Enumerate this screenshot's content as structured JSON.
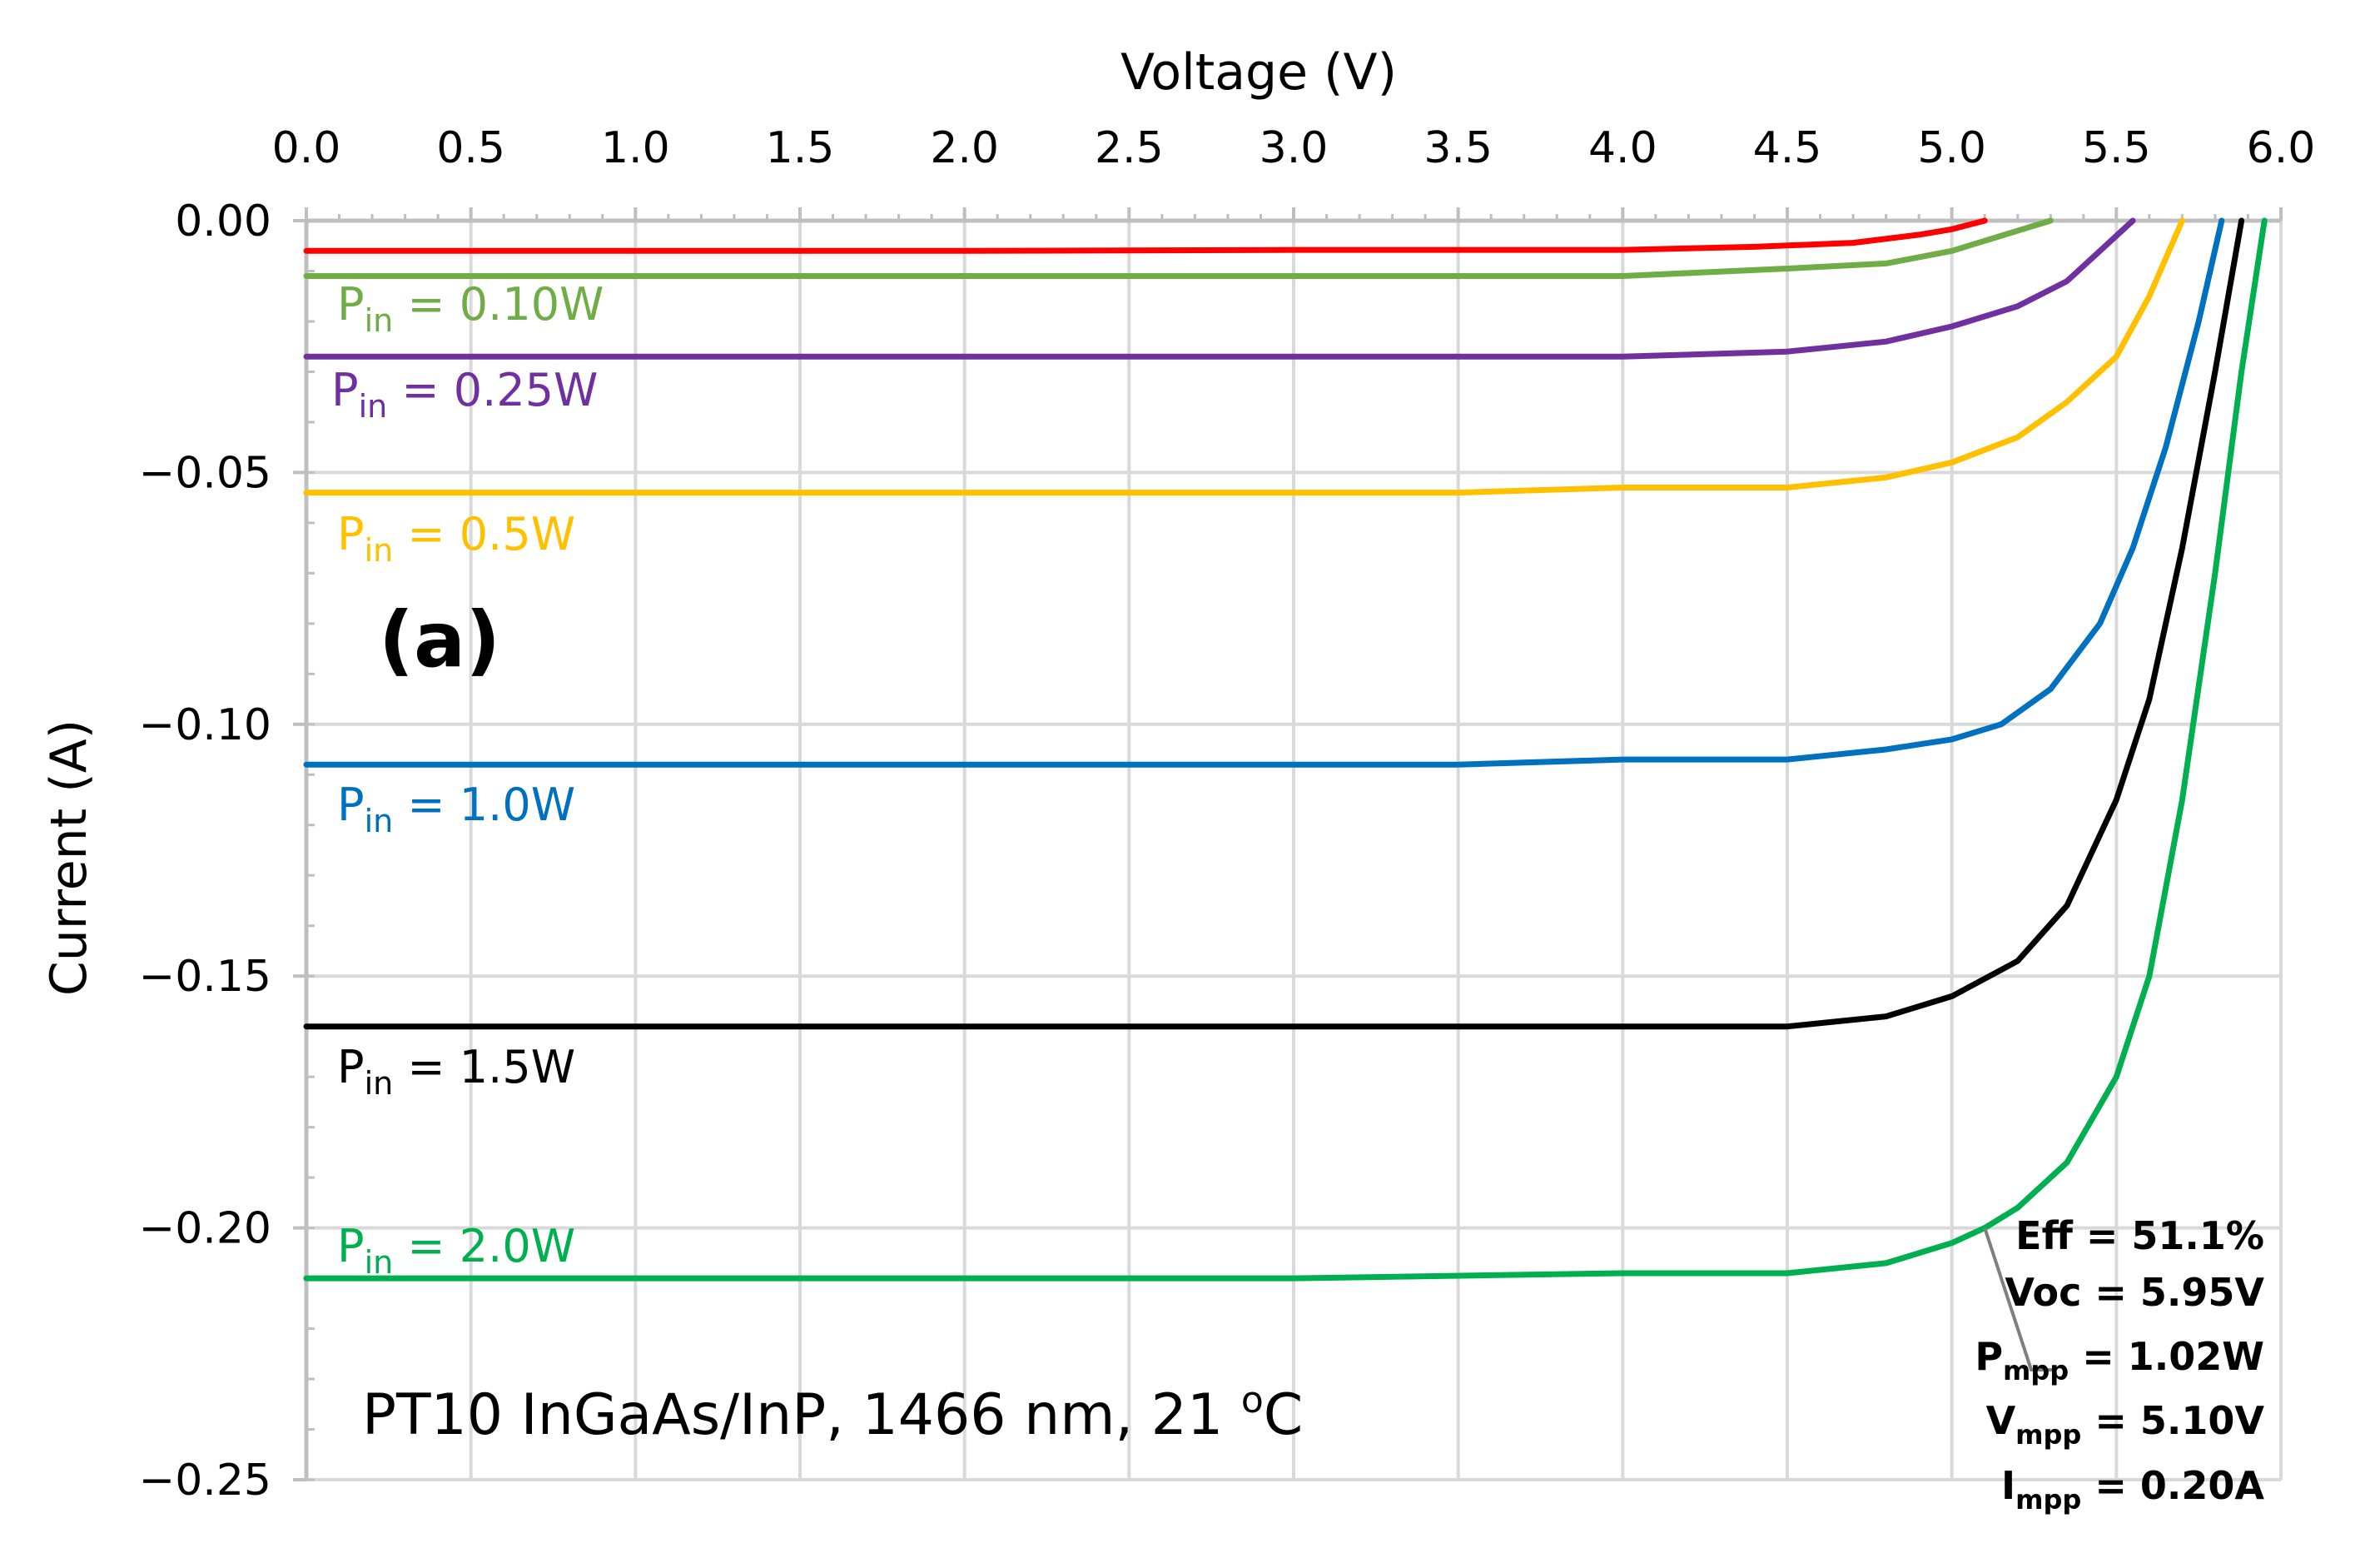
{
  "chart_data": {
    "type": "line",
    "panel_label": "(a)",
    "xlabel": "Voltage (V)",
    "ylabel": "Current (A)",
    "xlim": [
      0.0,
      6.0
    ],
    "ylim": [
      -0.25,
      0.0
    ],
    "x_ticks": [
      "0.0",
      "0.5",
      "1.0",
      "1.5",
      "2.0",
      "2.5",
      "3.0",
      "3.5",
      "4.0",
      "4.5",
      "5.0",
      "5.5",
      "6.0"
    ],
    "y_ticks": [
      {
        "value": 0.0,
        "label": "0.00"
      },
      {
        "value": -0.05,
        "label": "−0.05"
      },
      {
        "value": -0.1,
        "label": "−0.10"
      },
      {
        "value": -0.15,
        "label": "−0.15"
      },
      {
        "value": -0.2,
        "label": "−0.20"
      },
      {
        "value": -0.25,
        "label": "−0.25"
      }
    ],
    "grid": true,
    "x_axis_position": "top",
    "series": [
      {
        "name": "unlabeled",
        "color": "#ff0000",
        "label": null,
        "Isc": -0.006,
        "points": [
          [
            0,
            -0.006
          ],
          [
            1,
            -0.006
          ],
          [
            2,
            -0.006
          ],
          [
            3,
            -0.0058
          ],
          [
            4,
            -0.0058
          ],
          [
            4.4,
            -0.0052
          ],
          [
            4.7,
            -0.0044
          ],
          [
            4.9,
            -0.0028
          ],
          [
            5.0,
            -0.0017
          ],
          [
            5.1,
            0.0
          ]
        ]
      },
      {
        "name": "P_in = 0.10W",
        "color": "#70ad47",
        "label": {
          "p": "P",
          "sub": "in",
          "rest": " = 0.10W"
        },
        "Isc": -0.011,
        "points": [
          [
            0,
            -0.011
          ],
          [
            1,
            -0.011
          ],
          [
            2,
            -0.011
          ],
          [
            3,
            -0.011
          ],
          [
            4,
            -0.011
          ],
          [
            4.5,
            -0.0095
          ],
          [
            4.8,
            -0.0085
          ],
          [
            5.0,
            -0.006
          ],
          [
            5.15,
            -0.003
          ],
          [
            5.3,
            0.0
          ]
        ]
      },
      {
        "name": "P_in = 0.25W",
        "color": "#7030a0",
        "label": {
          "p": "P",
          "sub": "in",
          "rest": " = 0.25W"
        },
        "Isc": -0.027,
        "points": [
          [
            0,
            -0.027
          ],
          [
            1,
            -0.027
          ],
          [
            2,
            -0.027
          ],
          [
            3,
            -0.027
          ],
          [
            4,
            -0.027
          ],
          [
            4.5,
            -0.026
          ],
          [
            4.8,
            -0.024
          ],
          [
            5.0,
            -0.021
          ],
          [
            5.2,
            -0.017
          ],
          [
            5.35,
            -0.012
          ],
          [
            5.45,
            -0.006
          ],
          [
            5.55,
            0.0
          ]
        ]
      },
      {
        "name": "P_in = 0.5W",
        "color": "#ffc000",
        "label": {
          "p": "P",
          "sub": "in",
          "rest": " = 0.5W"
        },
        "Isc": -0.054,
        "points": [
          [
            0,
            -0.054
          ],
          [
            1,
            -0.054
          ],
          [
            2,
            -0.054
          ],
          [
            3,
            -0.054
          ],
          [
            3.5,
            -0.054
          ],
          [
            4,
            -0.053
          ],
          [
            4.5,
            -0.053
          ],
          [
            4.8,
            -0.051
          ],
          [
            5.0,
            -0.048
          ],
          [
            5.2,
            -0.043
          ],
          [
            5.35,
            -0.036
          ],
          [
            5.5,
            -0.027
          ],
          [
            5.6,
            -0.015
          ],
          [
            5.7,
            0.0
          ]
        ]
      },
      {
        "name": "P_in = 1.0W",
        "color": "#0070c0",
        "label": {
          "p": "P",
          "sub": "in",
          "rest": " = 1.0W"
        },
        "Isc": -0.108,
        "points": [
          [
            0,
            -0.108
          ],
          [
            1,
            -0.108
          ],
          [
            2,
            -0.108
          ],
          [
            3,
            -0.108
          ],
          [
            3.5,
            -0.108
          ],
          [
            4,
            -0.107
          ],
          [
            4.5,
            -0.107
          ],
          [
            4.8,
            -0.105
          ],
          [
            5.0,
            -0.103
          ],
          [
            5.15,
            -0.1
          ],
          [
            5.3,
            -0.093
          ],
          [
            5.45,
            -0.08
          ],
          [
            5.55,
            -0.065
          ],
          [
            5.65,
            -0.045
          ],
          [
            5.75,
            -0.02
          ],
          [
            5.82,
            0.0
          ]
        ]
      },
      {
        "name": "P_in = 1.5W",
        "color": "#000000",
        "label": {
          "p": "P",
          "sub": "in",
          "rest": " = 1.5W"
        },
        "Isc": -0.16,
        "points": [
          [
            0,
            -0.16
          ],
          [
            1,
            -0.16
          ],
          [
            2,
            -0.16
          ],
          [
            3,
            -0.16
          ],
          [
            4,
            -0.16
          ],
          [
            4.5,
            -0.16
          ],
          [
            4.8,
            -0.158
          ],
          [
            5.0,
            -0.154
          ],
          [
            5.2,
            -0.147
          ],
          [
            5.35,
            -0.136
          ],
          [
            5.5,
            -0.115
          ],
          [
            5.6,
            -0.095
          ],
          [
            5.7,
            -0.065
          ],
          [
            5.8,
            -0.03
          ],
          [
            5.88,
            0.0
          ]
        ]
      },
      {
        "name": "P_in = 2.0W",
        "color": "#00b050",
        "label": {
          "p": "P",
          "sub": "in",
          "rest": " = 2.0W"
        },
        "Isc": -0.21,
        "points": [
          [
            0,
            -0.21
          ],
          [
            1,
            -0.21
          ],
          [
            2,
            -0.21
          ],
          [
            3,
            -0.21
          ],
          [
            4,
            -0.209
          ],
          [
            4.5,
            -0.209
          ],
          [
            4.8,
            -0.207
          ],
          [
            5.0,
            -0.203
          ],
          [
            5.1,
            -0.2
          ],
          [
            5.2,
            -0.196
          ],
          [
            5.35,
            -0.187
          ],
          [
            5.5,
            -0.17
          ],
          [
            5.6,
            -0.15
          ],
          [
            5.7,
            -0.115
          ],
          [
            5.8,
            -0.07
          ],
          [
            5.88,
            -0.03
          ],
          [
            5.95,
            0.0
          ]
        ]
      }
    ],
    "annotation_device": {
      "main": "PT10 InGaAs/InP, 1466 nm, 21 ",
      "sup": "o",
      "unit": "C"
    },
    "mpp_annotation": {
      "points_to": [
        5.1,
        -0.2
      ],
      "lines": [
        {
          "main": "Eff = 51.1%",
          "sub": null,
          "rest": null
        },
        {
          "main": "Voc = 5.95V",
          "sub": null,
          "rest": null
        },
        {
          "main": "P",
          "sub": "mpp",
          "rest": " = 1.02W"
        },
        {
          "main": "V",
          "sub": "mpp",
          "rest": " = 5.10V"
        },
        {
          "main": "I",
          "sub": "mpp",
          "rest": " = 0.20A"
        }
      ]
    }
  }
}
